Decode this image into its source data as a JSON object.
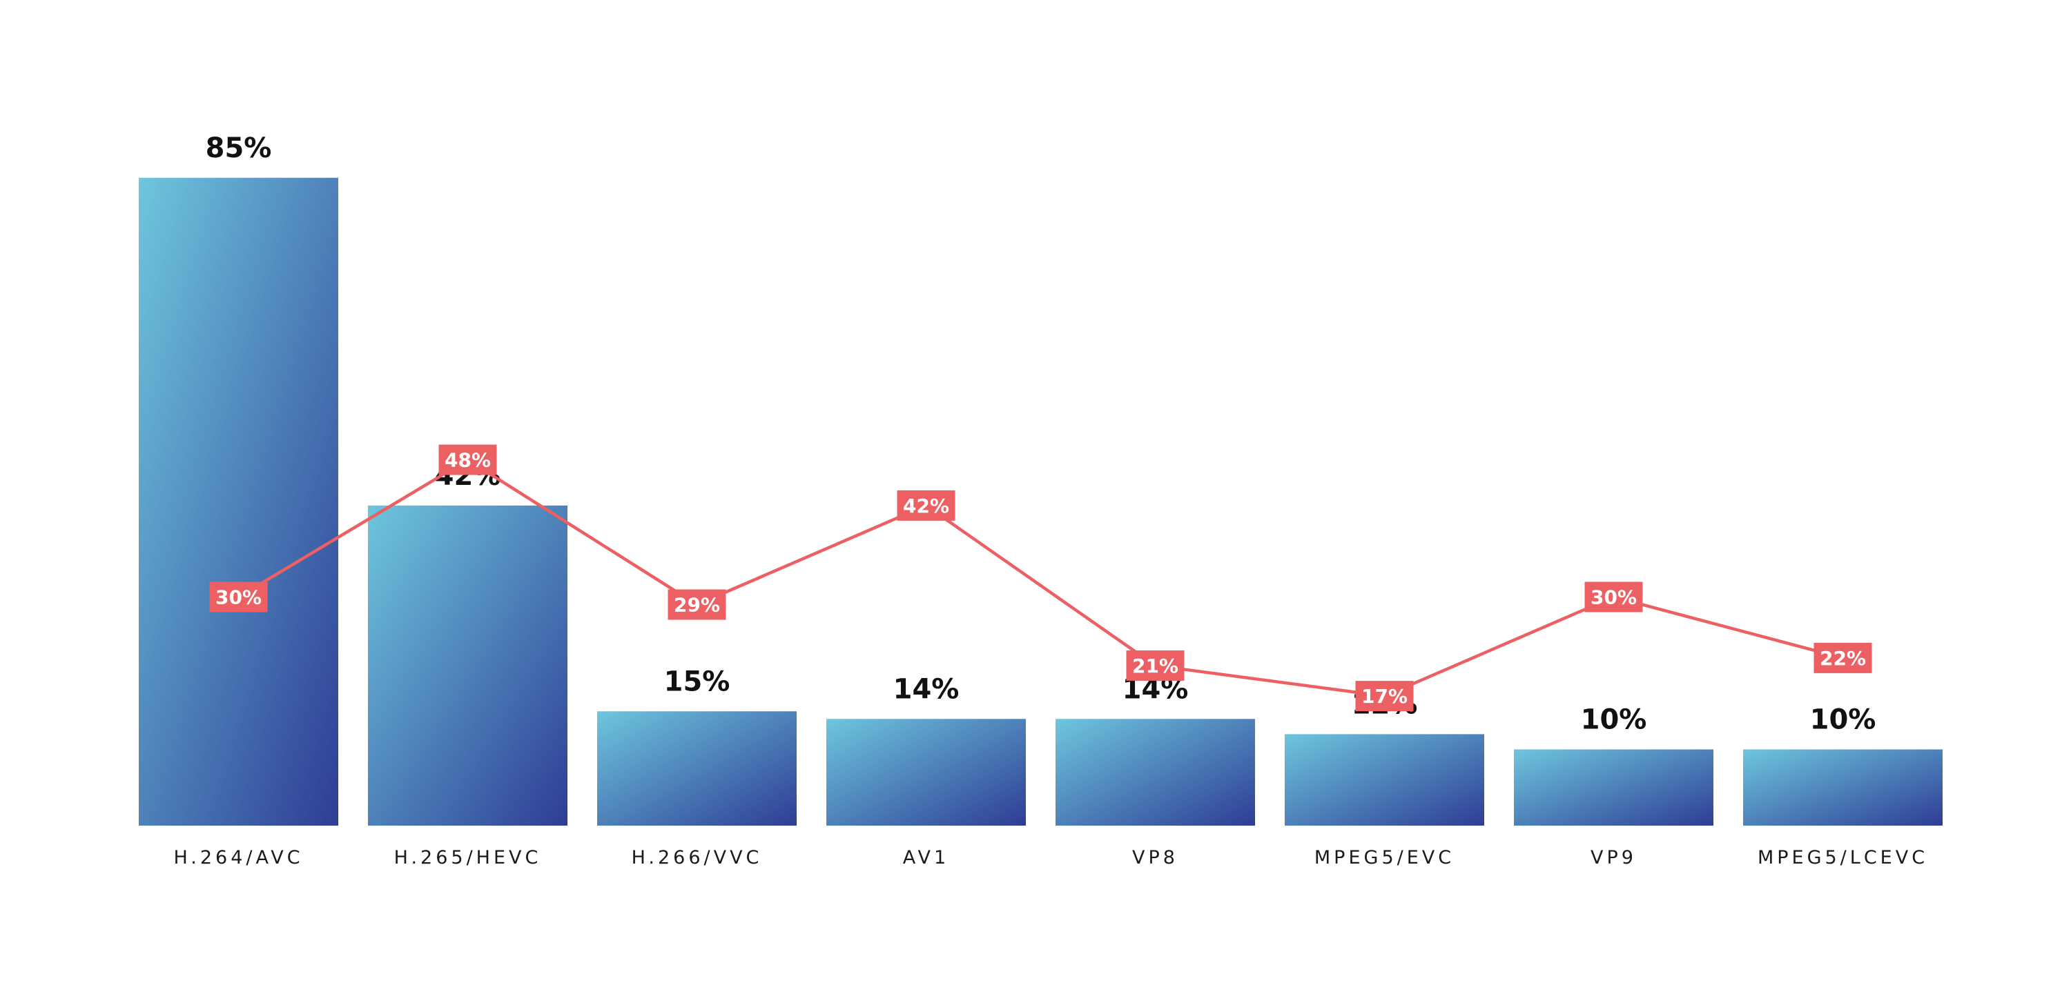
{
  "chart_data": {
    "type": "bar",
    "categories": [
      "H.264/AVC",
      "H.265/HEVC",
      "H.266/VVC",
      "AV1",
      "VP8",
      "MPEG5/EVC",
      "VP9",
      "MPEG5/LCEVC"
    ],
    "series": [
      {
        "type": "bar",
        "values": [
          85,
          42,
          15,
          14,
          14,
          12,
          10,
          10
        ],
        "labels": [
          "85%",
          "42%",
          "15%",
          "14%",
          "14%",
          "12%",
          "10%",
          "10%"
        ]
      },
      {
        "type": "line",
        "values": [
          30,
          48,
          29,
          42,
          21,
          17,
          30,
          22
        ],
        "labels": [
          "30%",
          "48%",
          "29%",
          "42%",
          "21%",
          "17%",
          "30%",
          "22%"
        ]
      }
    ],
    "title": "",
    "xlabel": "",
    "ylabel": "",
    "ylim": [
      0,
      100
    ],
    "grid": false,
    "legend": "none",
    "colors": {
      "bar_gradient_start": "#6ec6de",
      "bar_gradient_end": "#2e3d95",
      "line": "#ec5f62",
      "line_label_bg": "#ec5f62"
    }
  }
}
